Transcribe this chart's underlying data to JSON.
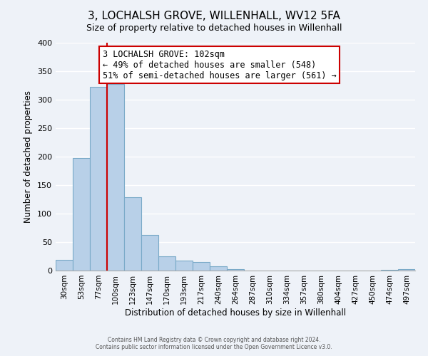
{
  "title": "3, LOCHALSH GROVE, WILLENHALL, WV12 5FA",
  "subtitle": "Size of property relative to detached houses in Willenhall",
  "xlabel": "Distribution of detached houses by size in Willenhall",
  "ylabel": "Number of detached properties",
  "bar_labels": [
    "30sqm",
    "53sqm",
    "77sqm",
    "100sqm",
    "123sqm",
    "147sqm",
    "170sqm",
    "193sqm",
    "217sqm",
    "240sqm",
    "264sqm",
    "287sqm",
    "310sqm",
    "334sqm",
    "357sqm",
    "380sqm",
    "404sqm",
    "427sqm",
    "450sqm",
    "474sqm",
    "497sqm"
  ],
  "bar_values": [
    19,
    197,
    323,
    328,
    129,
    62,
    25,
    17,
    15,
    8,
    3,
    0,
    0,
    0,
    0,
    0,
    0,
    0,
    0,
    1,
    3
  ],
  "bar_color": "#b8d0e8",
  "bar_edge_color": "#7aaac8",
  "property_line_color": "#cc0000",
  "annotation_line1": "3 LOCHALSH GROVE: 102sqm",
  "annotation_line2": "← 49% of detached houses are smaller (548)",
  "annotation_line3": "51% of semi-detached houses are larger (561) →",
  "annotation_box_color": "#ffffff",
  "annotation_box_edge_color": "#cc0000",
  "ylim": [
    0,
    400
  ],
  "yticks": [
    0,
    50,
    100,
    150,
    200,
    250,
    300,
    350,
    400
  ],
  "footer1": "Contains HM Land Registry data © Crown copyright and database right 2024.",
  "footer2": "Contains public sector information licensed under the Open Government Licence v3.0.",
  "bg_color": "#eef2f8",
  "plot_bg_color": "#eef2f8",
  "grid_color": "#ffffff",
  "title_fontsize": 11,
  "subtitle_fontsize": 9
}
